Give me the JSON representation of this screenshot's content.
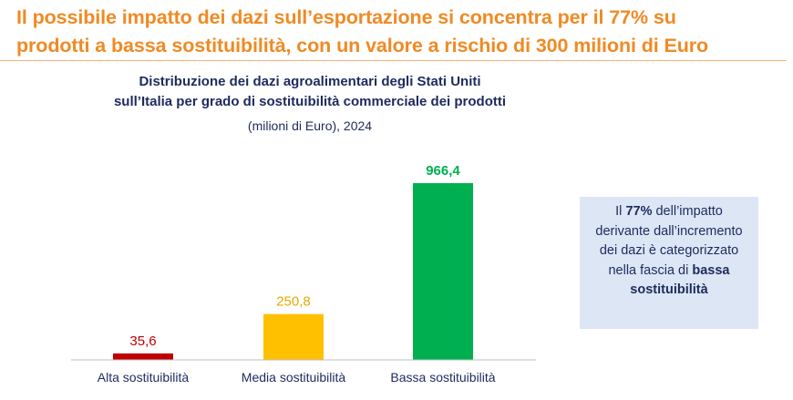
{
  "headline": {
    "line1": "Il possibile impatto dei dazi sull’esportazione si concentra per il 77% su",
    "line2": "prodotti a bassa sostituibilità, con un valore a rischio di 300 milioni di Euro"
  },
  "chart_data": {
    "type": "bar",
    "title": "Distribuzione dei dazi agroalimentari degli Stati Uniti sull’Italia per grado di sostituibilità commerciale dei prodotti",
    "title_line1": "Distribuzione dei dazi agroalimentari degli Stati Uniti",
    "title_line2": "sull’Italia per grado di sostituibilità commerciale dei prodotti",
    "subtitle": "(milioni di Euro), 2024",
    "categories": [
      "Alta sostituibilità",
      "Media sostituibilità",
      "Bassa sostituibilità"
    ],
    "values": [
      35.6,
      250.8,
      966.4
    ],
    "value_labels": [
      "35,6",
      "250,8",
      "966,4"
    ],
    "colors": [
      "#c00000",
      "#ffc000",
      "#00b050"
    ],
    "label_colors": [
      "#c00000",
      "#e6a800",
      "#00b050"
    ],
    "ylim": [
      0,
      966.4
    ],
    "xlabel": "",
    "ylabel": "",
    "grid": false,
    "legend": "none"
  },
  "callout": {
    "prefix": "Il ",
    "percent": "77%",
    "middle": " dell’impatto derivante dall’incremento dei dazi è categorizzato nella fascia di ",
    "emphasis": "bassa sostituibilità"
  }
}
